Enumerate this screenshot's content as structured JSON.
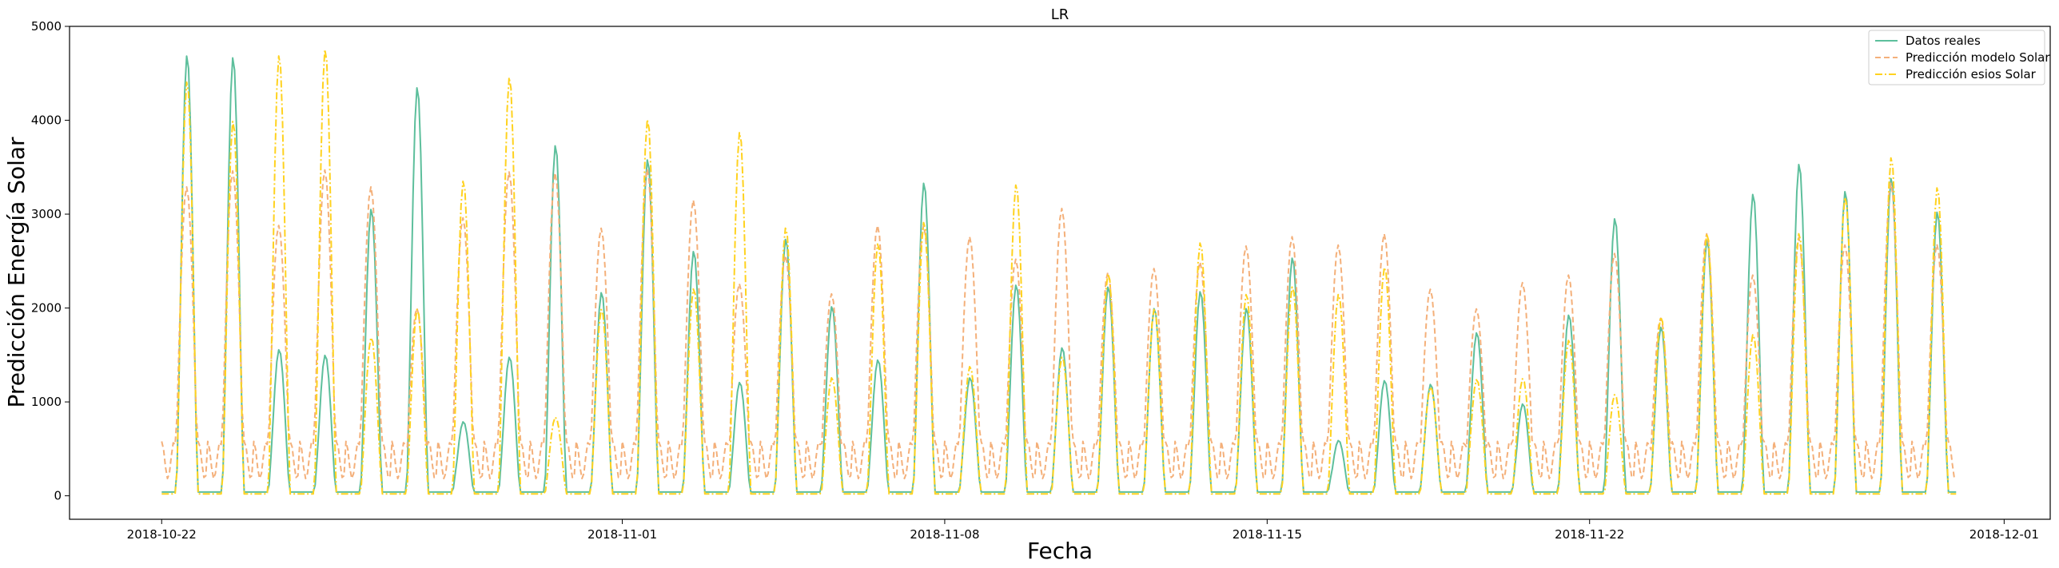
{
  "chart_data": {
    "type": "line",
    "title": "LR",
    "xlabel": "Fecha",
    "ylabel": "Predicción Energía Solar",
    "ylim": [
      -250,
      5000
    ],
    "xlim": [
      "2018-10-20",
      "2018-12-02"
    ],
    "yticks": [
      0,
      1000,
      2000,
      3000,
      4000,
      5000
    ],
    "xticks": [
      "2018-10-22",
      "2018-11-01",
      "2018-11-08",
      "2018-11-15",
      "2018-11-22",
      "2018-12-01"
    ],
    "x_start": "2018-10-22",
    "grid": false,
    "legend_position": "top-right",
    "series": [
      {
        "name": "Datos reales",
        "color": "#5dbf9c",
        "style": "solid",
        "daily_peaks": [
          4700,
          4680,
          1560,
          1500,
          3060,
          4360,
          790,
          1480,
          3740,
          2170,
          3590,
          2610,
          1210,
          2740,
          2020,
          1450,
          3340,
          1260,
          2250,
          1580,
          2230,
          2000,
          2180,
          2000,
          2540,
          590,
          1230,
          1190,
          1740,
          980,
          1930,
          2960,
          1800,
          2730,
          3220,
          3540,
          3250,
          3390,
          3030
        ]
      },
      {
        "name": "Predicción modelo Solar",
        "color": "#f4b07a",
        "style": "dashed",
        "daily_peaks": [
          3290,
          3460,
          2880,
          3470,
          3290,
          2000,
          2960,
          3450,
          3440,
          2850,
          3480,
          3150,
          2260,
          2560,
          2150,
          2880,
          2880,
          2760,
          2520,
          3060,
          2380,
          2420,
          2490,
          2660,
          2760,
          2670,
          2790,
          2200,
          1990,
          2270,
          2350,
          2580,
          1890,
          2790,
          2350,
          2750,
          2670,
          3330,
          2680
        ]
      },
      {
        "name": "Predicción esios Solar",
        "color": "#ffd21f",
        "style": "dashdot",
        "daily_peaks": [
          4420,
          4000,
          4700,
          4770,
          1690,
          1990,
          3360,
          4470,
          840,
          1990,
          4020,
          2210,
          3880,
          2860,
          1260,
          2690,
          2920,
          1380,
          3320,
          1480,
          2370,
          1990,
          2700,
          2150,
          2230,
          2150,
          2440,
          1160,
          1240,
          1250,
          1660,
          1080,
          1910,
          2800,
          1720,
          2800,
          3190,
          3610,
          3290
        ]
      }
    ]
  }
}
